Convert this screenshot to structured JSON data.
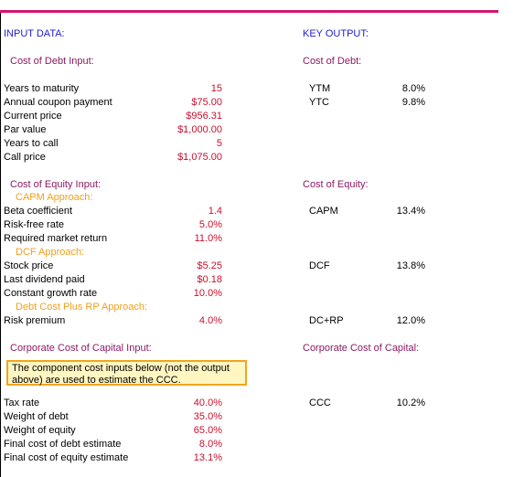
{
  "left": {
    "heading": "INPUT DATA:",
    "debt_title": "Cost of Debt Input:",
    "debt_rows": [
      {
        "label": "Years to maturity",
        "value": "15"
      },
      {
        "label": "Annual coupon payment",
        "value": "$75.00"
      },
      {
        "label": "Current price",
        "value": "$956.31"
      },
      {
        "label": "Par value",
        "value": "$1,000.00"
      },
      {
        "label": "Years to call",
        "value": "5"
      },
      {
        "label": "Call price",
        "value": "$1,075.00"
      }
    ],
    "equity_title": "Cost of Equity Input:",
    "capm_title": "CAPM Approach:",
    "capm_rows": [
      {
        "label": "Beta coefficient",
        "value": "1.4"
      },
      {
        "label": "Risk-free rate",
        "value": "5.0%"
      },
      {
        "label": "Required market return",
        "value": "11.0%"
      }
    ],
    "dcf_title": "DCF Approach:",
    "dcf_rows": [
      {
        "label": "Stock price",
        "value": "$5.25"
      },
      {
        "label": "Last dividend paid",
        "value": "$0.18"
      },
      {
        "label": "Constant growth rate",
        "value": "10.0%"
      }
    ],
    "rp_title": "Debt Cost Plus RP Approach:",
    "rp_rows": [
      {
        "label": "Risk premium",
        "value": "4.0%"
      }
    ],
    "ccc_title": "Corporate Cost of Capital Input:",
    "note": "The component cost inputs below (not the output above) are used to estimate the CCC.",
    "ccc_rows": [
      {
        "label": "Tax rate",
        "value": "40.0%"
      },
      {
        "label": "Weight of debt",
        "value": "35.0%"
      },
      {
        "label": "Weight of equity",
        "value": "65.0%"
      },
      {
        "label": "Final cost of debt estimate",
        "value": "8.0%"
      },
      {
        "label": "Final cost of equity estimate",
        "value": "13.1%"
      }
    ]
  },
  "right": {
    "heading": "KEY OUTPUT:",
    "debt_title": "Cost of Debt:",
    "debt_rows": [
      {
        "label": "YTM",
        "value": "8.0%"
      },
      {
        "label": "YTC",
        "value": "9.8%"
      }
    ],
    "equity_title": "Cost of Equity:",
    "capm": {
      "label": "CAPM",
      "value": "13.4%"
    },
    "dcf": {
      "label": "DCF",
      "value": "13.8%"
    },
    "rp": {
      "label": "DC+RP",
      "value": "12.0%"
    },
    "ccc_title": "Corporate Cost of Capital:",
    "ccc": {
      "label": "CCC",
      "value": "10.2%"
    }
  }
}
